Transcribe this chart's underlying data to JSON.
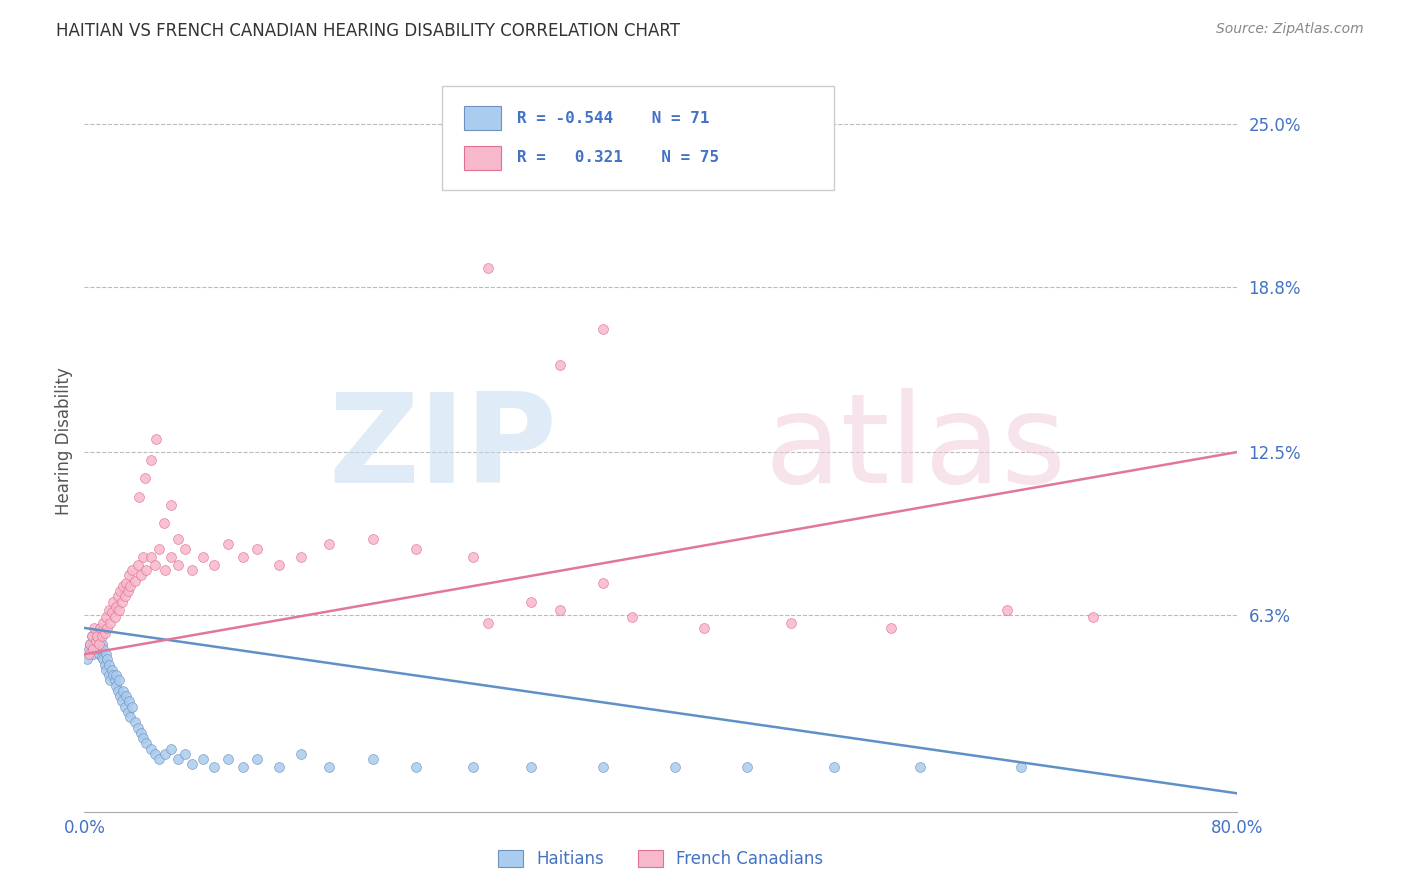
{
  "title": "HAITIAN VS FRENCH CANADIAN HEARING DISABILITY CORRELATION CHART",
  "source": "Source: ZipAtlas.com",
  "ylabel": "Hearing Disability",
  "ytick_values": [
    0.063,
    0.125,
    0.188,
    0.25
  ],
  "ytick_labels": [
    "6.3%",
    "12.5%",
    "18.8%",
    "25.0%"
  ],
  "xmin": 0.0,
  "xmax": 0.8,
  "ymin": -0.012,
  "ymax": 0.27,
  "legend_text_color": "#4472c4",
  "blue_color": "#aaccee",
  "pink_color": "#f8b8cc",
  "blue_edge_color": "#7090c0",
  "pink_edge_color": "#e07090",
  "line_blue_color": "#6090c8",
  "line_pink_color": "#e07898",
  "grid_color": "#bbbbbb",
  "blue_line_y_start": 0.058,
  "blue_line_y_end": -0.005,
  "pink_line_y_start": 0.048,
  "pink_line_y_end": 0.125,
  "blue_scatter_x": [
    0.002,
    0.003,
    0.004,
    0.005,
    0.006,
    0.006,
    0.007,
    0.008,
    0.008,
    0.009,
    0.01,
    0.01,
    0.011,
    0.012,
    0.012,
    0.013,
    0.013,
    0.014,
    0.015,
    0.015,
    0.016,
    0.017,
    0.017,
    0.018,
    0.019,
    0.02,
    0.021,
    0.022,
    0.022,
    0.023,
    0.024,
    0.025,
    0.026,
    0.027,
    0.028,
    0.029,
    0.03,
    0.031,
    0.032,
    0.033,
    0.035,
    0.037,
    0.039,
    0.041,
    0.043,
    0.046,
    0.049,
    0.052,
    0.056,
    0.06,
    0.065,
    0.07,
    0.075,
    0.082,
    0.09,
    0.1,
    0.11,
    0.12,
    0.135,
    0.15,
    0.17,
    0.2,
    0.23,
    0.27,
    0.31,
    0.36,
    0.41,
    0.46,
    0.52,
    0.58,
    0.65
  ],
  "blue_scatter_y": [
    0.046,
    0.05,
    0.052,
    0.055,
    0.048,
    0.052,
    0.05,
    0.053,
    0.056,
    0.05,
    0.048,
    0.054,
    0.05,
    0.047,
    0.052,
    0.046,
    0.05,
    0.044,
    0.048,
    0.042,
    0.046,
    0.04,
    0.044,
    0.038,
    0.042,
    0.04,
    0.038,
    0.036,
    0.04,
    0.034,
    0.038,
    0.032,
    0.03,
    0.034,
    0.028,
    0.032,
    0.026,
    0.03,
    0.024,
    0.028,
    0.022,
    0.02,
    0.018,
    0.016,
    0.014,
    0.012,
    0.01,
    0.008,
    0.01,
    0.012,
    0.008,
    0.01,
    0.006,
    0.008,
    0.005,
    0.008,
    0.005,
    0.008,
    0.005,
    0.01,
    0.005,
    0.008,
    0.005,
    0.005,
    0.005,
    0.005,
    0.005,
    0.005,
    0.005,
    0.005,
    0.005
  ],
  "pink_scatter_x": [
    0.003,
    0.004,
    0.005,
    0.006,
    0.007,
    0.008,
    0.009,
    0.01,
    0.011,
    0.012,
    0.013,
    0.014,
    0.015,
    0.016,
    0.017,
    0.018,
    0.019,
    0.02,
    0.021,
    0.022,
    0.023,
    0.024,
    0.025,
    0.026,
    0.027,
    0.028,
    0.029,
    0.03,
    0.031,
    0.032,
    0.033,
    0.035,
    0.037,
    0.039,
    0.041,
    0.043,
    0.046,
    0.049,
    0.052,
    0.056,
    0.06,
    0.065,
    0.07,
    0.075,
    0.082,
    0.09,
    0.1,
    0.11,
    0.12,
    0.135,
    0.15,
    0.17,
    0.2,
    0.23,
    0.27,
    0.31,
    0.36,
    0.28,
    0.33,
    0.38,
    0.43,
    0.49,
    0.56,
    0.64,
    0.7,
    0.33,
    0.36,
    0.28,
    0.038,
    0.042,
    0.046,
    0.05,
    0.055,
    0.06,
    0.065
  ],
  "pink_scatter_y": [
    0.048,
    0.052,
    0.055,
    0.05,
    0.058,
    0.053,
    0.055,
    0.052,
    0.058,
    0.055,
    0.06,
    0.056,
    0.062,
    0.058,
    0.065,
    0.06,
    0.064,
    0.068,
    0.062,
    0.066,
    0.07,
    0.065,
    0.072,
    0.068,
    0.074,
    0.07,
    0.075,
    0.072,
    0.078,
    0.074,
    0.08,
    0.076,
    0.082,
    0.078,
    0.085,
    0.08,
    0.085,
    0.082,
    0.088,
    0.08,
    0.085,
    0.082,
    0.088,
    0.08,
    0.085,
    0.082,
    0.09,
    0.085,
    0.088,
    0.082,
    0.085,
    0.09,
    0.092,
    0.088,
    0.085,
    0.068,
    0.075,
    0.06,
    0.065,
    0.062,
    0.058,
    0.06,
    0.058,
    0.065,
    0.062,
    0.158,
    0.172,
    0.195,
    0.108,
    0.115,
    0.122,
    0.13,
    0.098,
    0.105,
    0.092
  ]
}
